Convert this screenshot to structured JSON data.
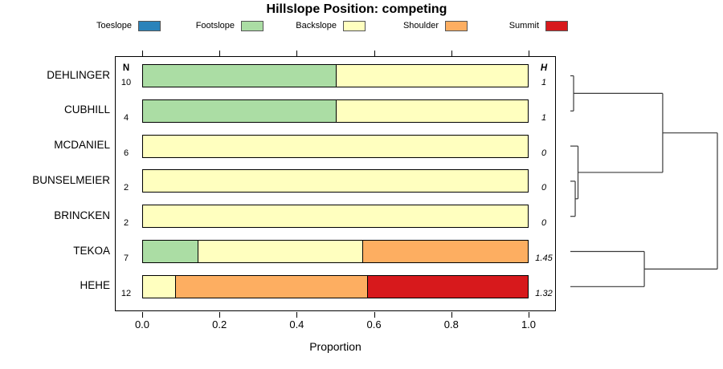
{
  "chart_data": {
    "type": "bar",
    "orientation": "horizontal-stacked",
    "title": "Hillslope Position: competing",
    "xlabel": "Proportion",
    "x_ticks": [
      "0.0",
      "0.2",
      "0.4",
      "0.6",
      "0.8",
      "1.0"
    ],
    "xlim": [
      0,
      1
    ],
    "n_header": "N",
    "h_header": "H",
    "legend_position": "top",
    "legend": [
      {
        "label": "Toeslope",
        "color": "#2b83ba"
      },
      {
        "label": "Footslope",
        "color": "#abdda4"
      },
      {
        "label": "Backslope",
        "color": "#ffffbf"
      },
      {
        "label": "Shoulder",
        "color": "#fdae61"
      },
      {
        "label": "Summit",
        "color": "#d7191c"
      }
    ],
    "rows": [
      {
        "name": "DEHLINGER",
        "n": "10",
        "h": "1",
        "segments": [
          {
            "category": "Footslope",
            "value": 0.5
          },
          {
            "category": "Backslope",
            "value": 0.5
          }
        ]
      },
      {
        "name": "CUBHILL",
        "n": "4",
        "h": "1",
        "segments": [
          {
            "category": "Footslope",
            "value": 0.5
          },
          {
            "category": "Backslope",
            "value": 0.5
          }
        ]
      },
      {
        "name": "MCDANIEL",
        "n": "6",
        "h": "0",
        "segments": [
          {
            "category": "Backslope",
            "value": 1
          }
        ]
      },
      {
        "name": "BUNSELMEIER",
        "n": "2",
        "h": "0",
        "segments": [
          {
            "category": "Backslope",
            "value": 1
          }
        ]
      },
      {
        "name": "BRINCKEN",
        "n": "2",
        "h": "0",
        "segments": [
          {
            "category": "Backslope",
            "value": 1
          }
        ]
      },
      {
        "name": "TEKOA",
        "n": "7",
        "h": "1.45",
        "segments": [
          {
            "category": "Footslope",
            "value": 0.143
          },
          {
            "category": "Backslope",
            "value": 0.428
          },
          {
            "category": "Shoulder",
            "value": 0.429
          }
        ]
      },
      {
        "name": "HEHE",
        "n": "12",
        "h": "1.32",
        "segments": [
          {
            "category": "Backslope",
            "value": 0.083
          },
          {
            "category": "Shoulder",
            "value": 0.5
          },
          {
            "category": "Summit",
            "value": 0.417
          }
        ]
      }
    ],
    "dendrogram": {
      "tree": {
        "h": 1.0,
        "children": [
          {
            "h": 0.628,
            "children": [
              {
                "h": 0.022,
                "children": [
                  {
                    "leaf": 0
                  },
                  {
                    "leaf": 1
                  }
                ]
              },
              {
                "h": 0.052,
                "children": [
                  {
                    "leaf": 2
                  },
                  {
                    "h": 0.033,
                    "children": [
                      {
                        "leaf": 3
                      },
                      {
                        "leaf": 4
                      }
                    ]
                  }
                ]
              }
            ]
          },
          {
            "h": 0.503,
            "children": [
              {
                "leaf": 5
              },
              {
                "leaf": 6
              }
            ]
          }
        ]
      }
    }
  }
}
